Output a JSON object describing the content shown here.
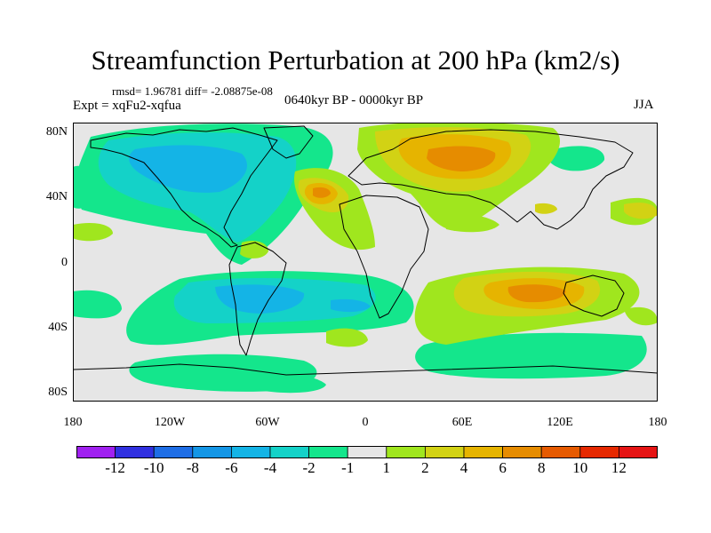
{
  "title": "Streamfunction Perturbation at 200 hPa (km2/s)",
  "stats": "rmsd= 1.96781 diff= -2.08875e-08",
  "experiment": "Expt = xqFu2-xqfua",
  "period": "0640kyr BP - 0000kyr BP",
  "season": "JJA",
  "lat_labels": [
    "80N",
    "40N",
    "0",
    "40S",
    "80S"
  ],
  "lon_labels": [
    "180",
    "120W",
    "60W",
    "0",
    "60E",
    "120E",
    "180"
  ],
  "colorbar": {
    "levels": [
      "-12",
      "-10",
      "-8",
      "-6",
      "-4",
      "-2",
      "-1",
      "1",
      "2",
      "4",
      "6",
      "8",
      "10",
      "12"
    ],
    "colors": [
      "#a020f0",
      "#3030e0",
      "#1e6ee6",
      "#1496e6",
      "#14b4e6",
      "#14d2c8",
      "#14e68c",
      "#e6e6e6",
      "#a0e61e",
      "#d2d214",
      "#e6b400",
      "#e68c00",
      "#e65a00",
      "#e62800",
      "#e61414"
    ]
  },
  "palette": {
    "background": "#e6e6e6",
    "coast": "#000000"
  }
}
